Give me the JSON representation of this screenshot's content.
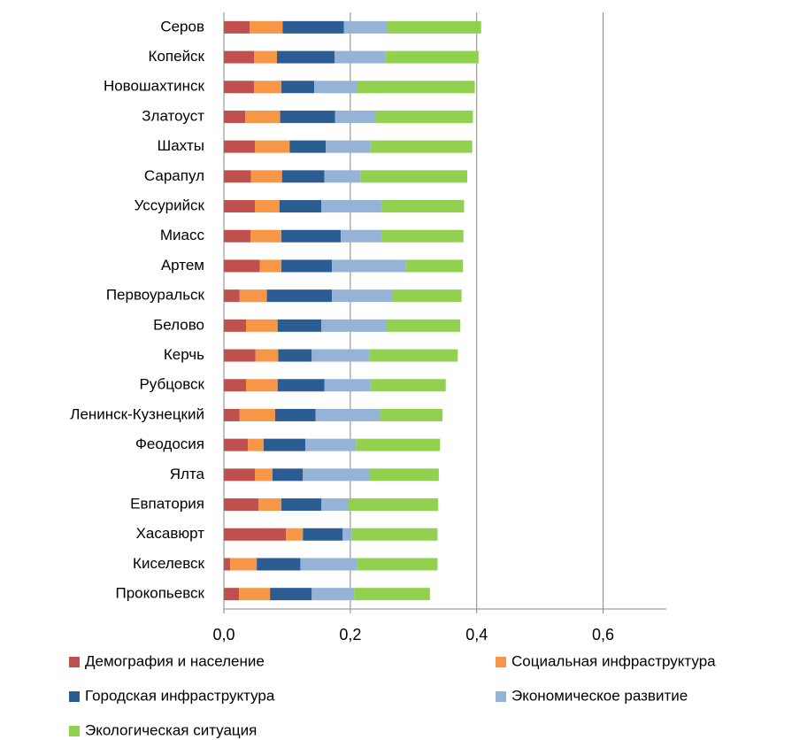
{
  "chart_data": {
    "type": "stacked_barh",
    "categories": [
      "Серов",
      "Копейск",
      "Новошахтинск",
      "Златоуст",
      "Шахты",
      "Сарапул",
      "Уссурийск",
      "Миасс",
      "Артем",
      "Первоуральск",
      "Белово",
      "Керчь",
      "Рубцовск",
      "Ленинск-Кузнецкий",
      "Феодосия",
      "Ялта",
      "Евпатория",
      "Хасавюрт",
      "Киселевск",
      "Прокопьевск"
    ],
    "series": [
      {
        "name": "Демография и население",
        "color": "#c0504d",
        "values": [
          0.041,
          0.048,
          0.048,
          0.034,
          0.049,
          0.043,
          0.049,
          0.042,
          0.057,
          0.025,
          0.035,
          0.05,
          0.035,
          0.025,
          0.038,
          0.049,
          0.055,
          0.098,
          0.01,
          0.024
        ]
      },
      {
        "name": "Социальная инфраструктура",
        "color": "#f79646",
        "values": [
          0.052,
          0.036,
          0.043,
          0.055,
          0.055,
          0.049,
          0.039,
          0.049,
          0.034,
          0.043,
          0.05,
          0.036,
          0.05,
          0.056,
          0.025,
          0.028,
          0.036,
          0.027,
          0.042,
          0.049
        ]
      },
      {
        "name": "Городская инфраструктура",
        "color": "#2c5d92",
        "values": [
          0.097,
          0.091,
          0.052,
          0.087,
          0.057,
          0.067,
          0.066,
          0.094,
          0.08,
          0.103,
          0.069,
          0.053,
          0.074,
          0.064,
          0.066,
          0.048,
          0.063,
          0.063,
          0.069,
          0.066
        ]
      },
      {
        "name": "Экономическое развитие",
        "color": "#95b3d7",
        "values": [
          0.069,
          0.081,
          0.067,
          0.064,
          0.071,
          0.057,
          0.095,
          0.064,
          0.117,
          0.095,
          0.103,
          0.091,
          0.073,
          0.102,
          0.08,
          0.106,
          0.042,
          0.014,
          0.09,
          0.067
        ]
      },
      {
        "name": "Экологическая ситуация",
        "color": "#92d050",
        "values": [
          0.148,
          0.147,
          0.187,
          0.154,
          0.161,
          0.169,
          0.131,
          0.13,
          0.09,
          0.11,
          0.117,
          0.14,
          0.119,
          0.099,
          0.133,
          0.109,
          0.143,
          0.136,
          0.127,
          0.12
        ]
      }
    ],
    "xlim": [
      0,
      0.7
    ],
    "xticks": [
      {
        "value": 0,
        "label": "0,0"
      },
      {
        "value": 0.2,
        "label": "0,2"
      },
      {
        "value": 0.4,
        "label": "0,4"
      },
      {
        "value": 0.6,
        "label": "0,6"
      }
    ],
    "grid": true
  }
}
